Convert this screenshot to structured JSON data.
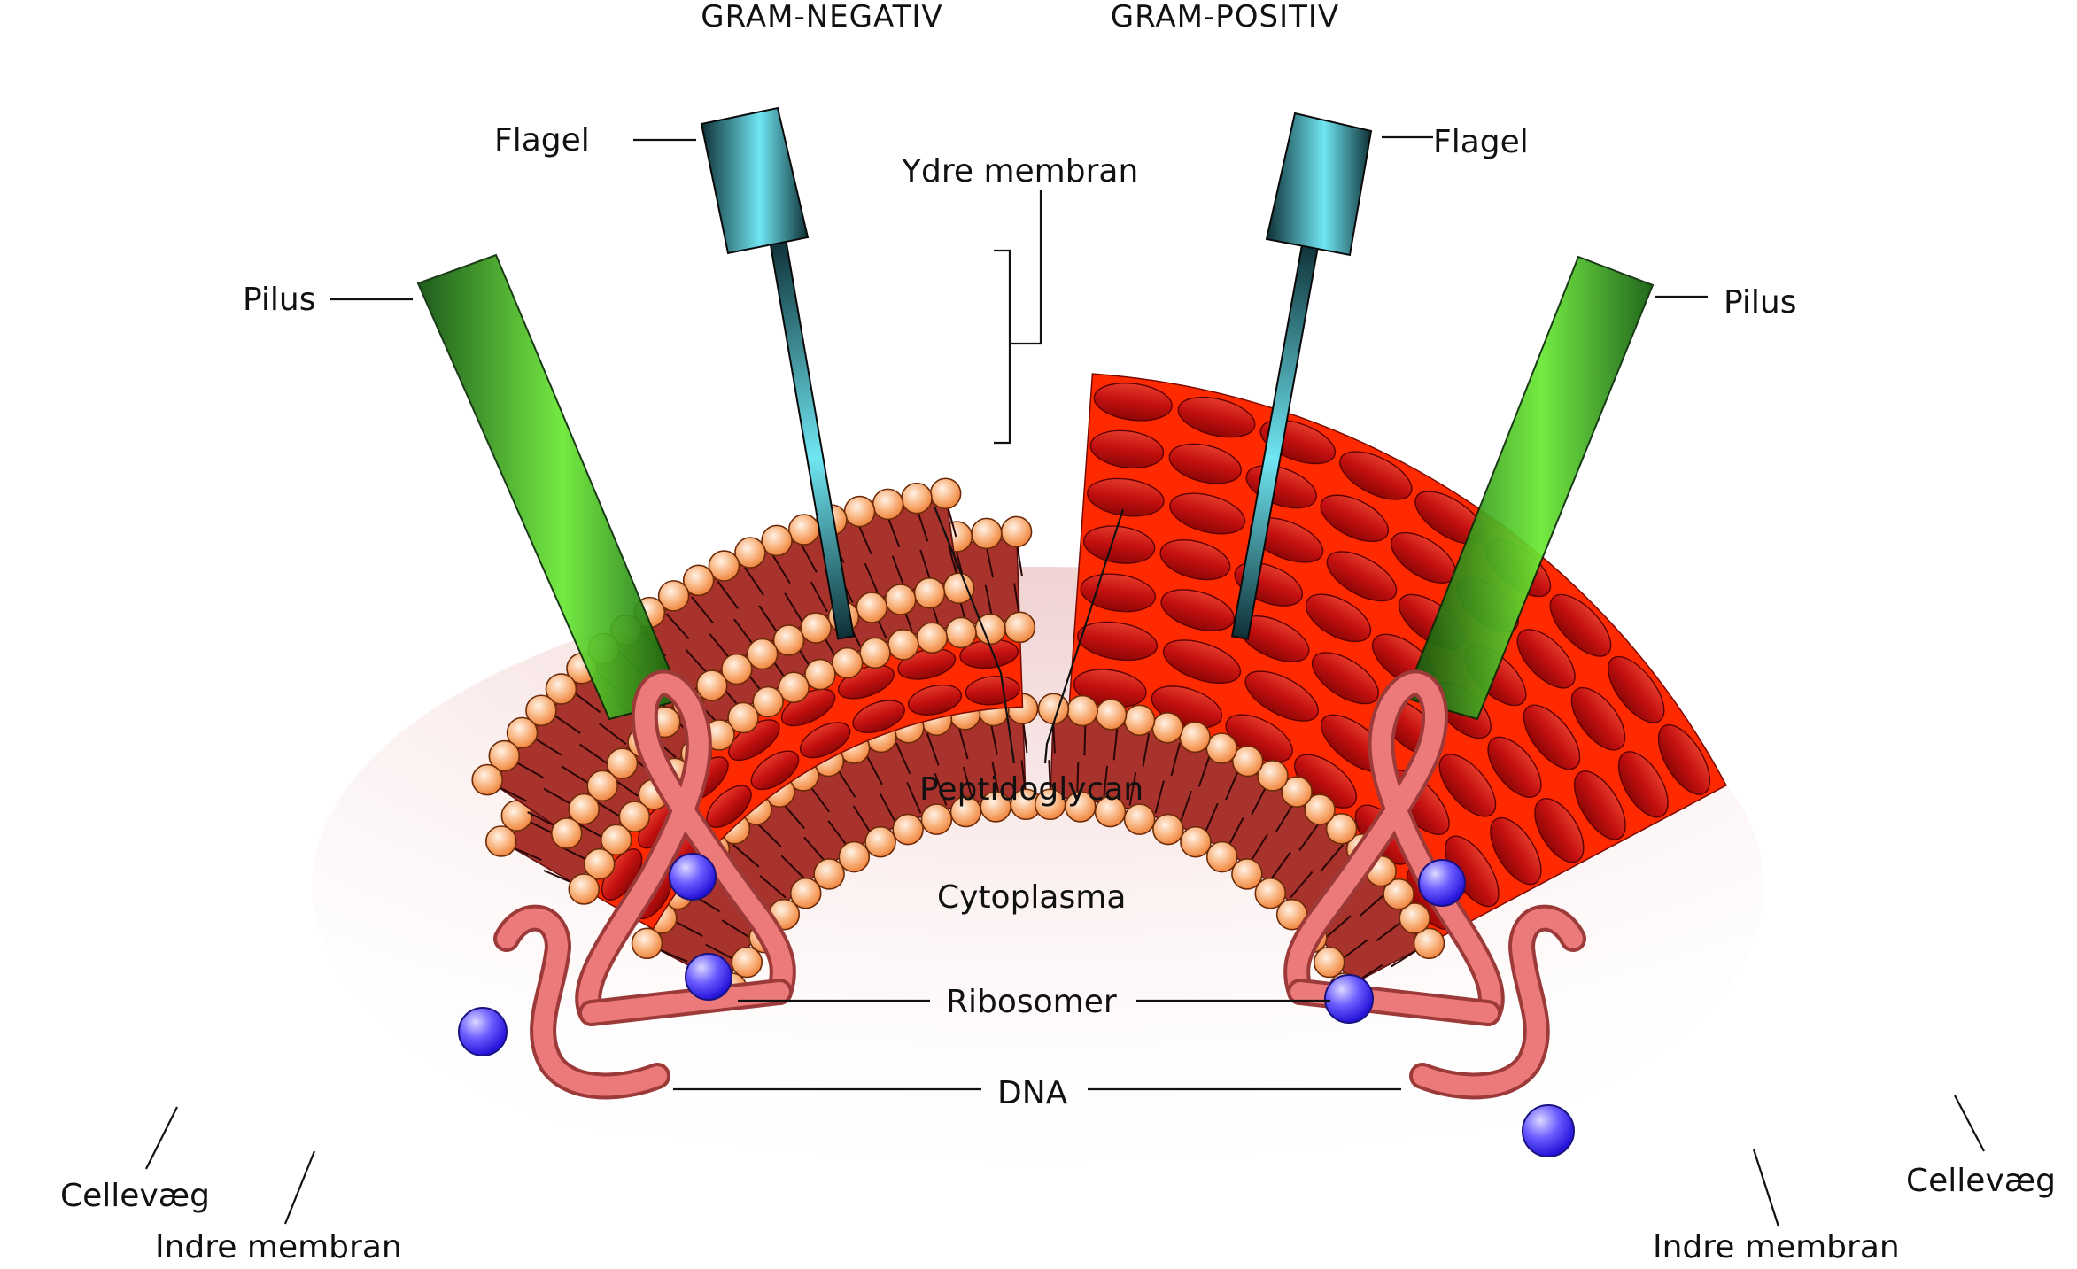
{
  "headers": {
    "left": "GRAM-NEGATIV",
    "right": "GRAM-POSITIV"
  },
  "labels": {
    "flagel_left": "Flagel",
    "flagel_right": "Flagel",
    "pilus_left": "Pilus",
    "pilus_right": "Pilus",
    "ydre_membran": "Ydre membran",
    "peptidoglycan": "Peptidoglycan",
    "cytoplasma": "Cytoplasma",
    "ribosomer": "Ribosomer",
    "dna": "DNA",
    "cellevaeg_left": "Cellevæg",
    "cellevaeg_right": "Cellevæg",
    "indre_membran_left": "Indre membran",
    "indre_membran_right": "Indre membran"
  },
  "colors": {
    "lipid_head": "#f7a062",
    "lipid_tail_band": "#a8332c",
    "cell_wall": "#ff2a00",
    "peptidoglycan_block": "#cc1010",
    "flagellum": "#3fb7c4",
    "pilus": "#2fb51e",
    "dna": "#e86868",
    "ribosome": "#4a3cff"
  }
}
